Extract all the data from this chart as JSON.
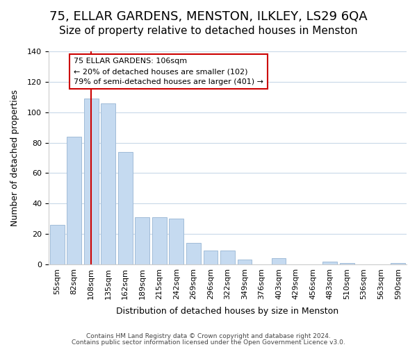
{
  "title": "75, ELLAR GARDENS, MENSTON, ILKLEY, LS29 6QA",
  "subtitle": "Size of property relative to detached houses in Menston",
  "xlabel": "Distribution of detached houses by size in Menston",
  "ylabel": "Number of detached properties",
  "bar_labels": [
    "55sqm",
    "82sqm",
    "108sqm",
    "135sqm",
    "162sqm",
    "189sqm",
    "215sqm",
    "242sqm",
    "269sqm",
    "296sqm",
    "322sqm",
    "349sqm",
    "376sqm",
    "403sqm",
    "429sqm",
    "456sqm",
    "483sqm",
    "510sqm",
    "536sqm",
    "563sqm",
    "590sqm"
  ],
  "bar_values": [
    26,
    84,
    109,
    106,
    74,
    31,
    31,
    30,
    14,
    9,
    9,
    3,
    0,
    4,
    0,
    0,
    2,
    1,
    0,
    0,
    1
  ],
  "bar_color": "#c5daf0",
  "bar_edge_color": "#a0bcd8",
  "highlight_bar_index": 2,
  "highlight_line_color": "#cc0000",
  "ylim": [
    0,
    140
  ],
  "yticks": [
    0,
    20,
    40,
    60,
    80,
    100,
    120,
    140
  ],
  "annotation_title": "75 ELLAR GARDENS: 106sqm",
  "annotation_line1": "← 20% of detached houses are smaller (102)",
  "annotation_line2": "79% of semi-detached houses are larger (401) →",
  "annotation_box_color": "#ffffff",
  "annotation_box_edge_color": "#cc0000",
  "footer_line1": "Contains HM Land Registry data © Crown copyright and database right 2024.",
  "footer_line2": "Contains public sector information licensed under the Open Government Licence v3.0.",
  "background_color": "#ffffff",
  "grid_color": "#c8d8e8",
  "title_fontsize": 13,
  "subtitle_fontsize": 11
}
